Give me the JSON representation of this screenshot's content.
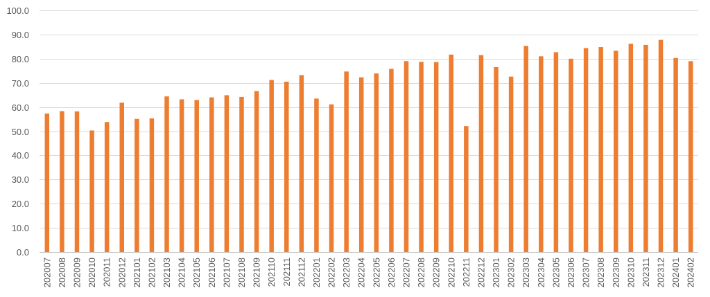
{
  "chart_data": {
    "type": "bar",
    "title": "",
    "xlabel": "",
    "ylabel": "",
    "ylim": [
      0,
      100
    ],
    "yticks": [
      "0.0",
      "10.0",
      "20.0",
      "30.0",
      "40.0",
      "50.0",
      "60.0",
      "70.0",
      "80.0",
      "90.0",
      "100.0"
    ],
    "grid": true,
    "legend": "none",
    "bar_color": "#ED7D31",
    "categories": [
      "202007",
      "202008",
      "202009",
      "202010",
      "202011",
      "202012",
      "202101",
      "202102",
      "202103",
      "202104",
      "202105",
      "202106",
      "202107",
      "202108",
      "202109",
      "202110",
      "202111",
      "202112",
      "202201",
      "202202",
      "202203",
      "202204",
      "202205",
      "202206",
      "202207",
      "202208",
      "202209",
      "202210",
      "202211",
      "202212",
      "202301",
      "202302",
      "202303",
      "202304",
      "202305",
      "202306",
      "202307",
      "202308",
      "202309",
      "202310",
      "202311",
      "202312",
      "202401",
      "202402"
    ],
    "values": [
      57.3,
      58.3,
      58.2,
      50.3,
      53.8,
      61.8,
      55.1,
      55.3,
      64.4,
      63.2,
      62.9,
      64.0,
      64.9,
      64.2,
      66.6,
      71.2,
      70.5,
      73.2,
      63.5,
      61.1,
      74.7,
      72.3,
      73.9,
      75.8,
      79.0,
      78.7,
      78.6,
      81.7,
      52.1,
      81.5,
      76.5,
      72.6,
      85.3,
      81.0,
      82.7,
      80.0,
      84.4,
      84.8,
      83.3,
      86.2,
      85.7,
      87.8,
      80.3,
      79.0
    ]
  }
}
